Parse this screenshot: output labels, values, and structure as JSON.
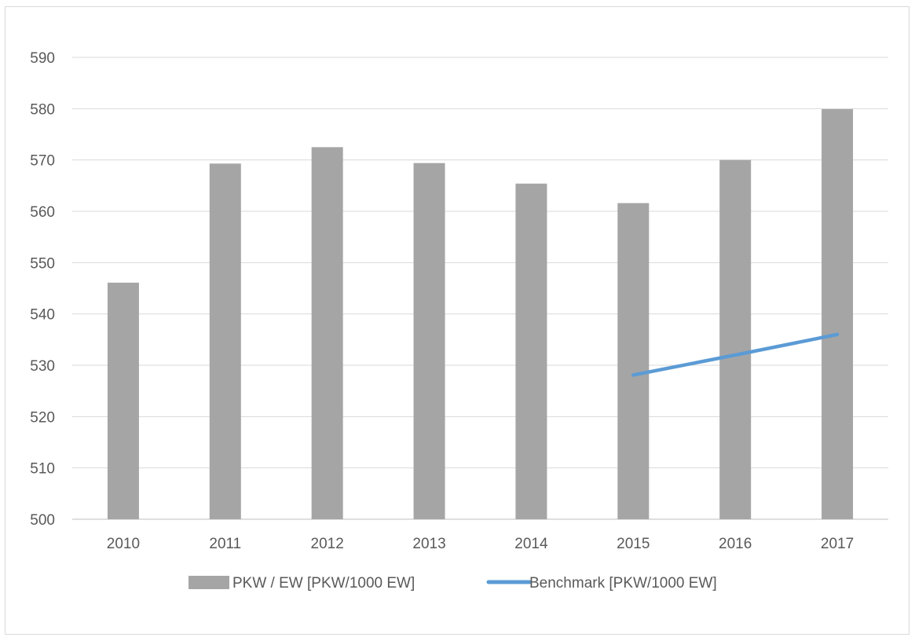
{
  "chart_data": {
    "type": "bar",
    "title": "",
    "xlabel": "",
    "ylabel": "",
    "categories": [
      "2010",
      "2011",
      "2012",
      "2013",
      "2014",
      "2015",
      "2016",
      "2017"
    ],
    "ylim": [
      500,
      590
    ],
    "yticks": [
      500,
      510,
      520,
      530,
      540,
      550,
      560,
      570,
      580,
      590
    ],
    "grid": true,
    "legend_position": "bottom",
    "series": [
      {
        "name": "PKW / EW [PKW/1000 EW]",
        "type": "bar",
        "color": "#a5a5a5",
        "values": [
          546.1,
          569.3,
          572.5,
          569.4,
          565.4,
          561.6,
          570.0,
          579.9
        ]
      },
      {
        "name": "Benchmark [PKW/1000 EW]",
        "type": "line",
        "color": "#5b9bd5",
        "values": [
          null,
          null,
          null,
          null,
          null,
          528.1,
          532.0,
          536.0
        ]
      }
    ]
  }
}
